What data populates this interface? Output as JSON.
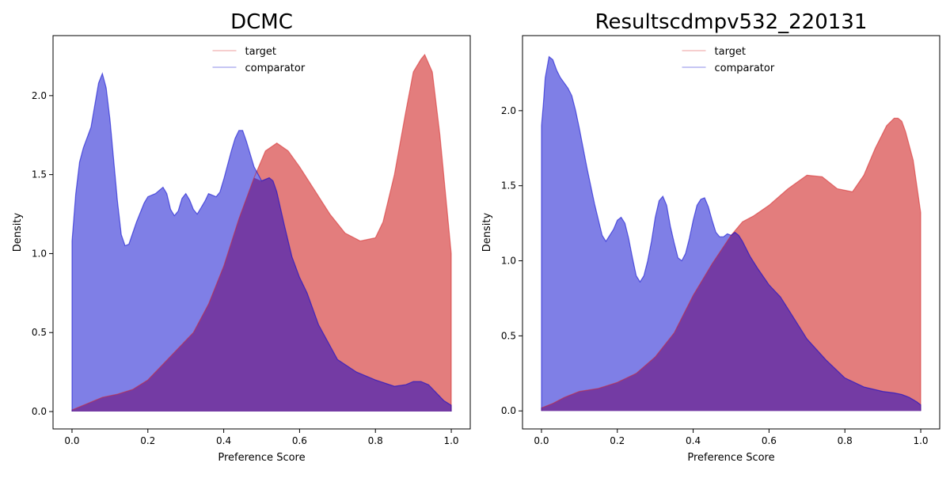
{
  "chart_data": [
    {
      "type": "area",
      "title": "DCMC",
      "xlabel": "Preference Score",
      "ylabel": "Density",
      "xlim": [
        -0.05,
        1.05
      ],
      "ylim": [
        -0.11,
        2.38
      ],
      "xticks": [
        0.0,
        0.2,
        0.4,
        0.6,
        0.8,
        1.0
      ],
      "xtick_labels": [
        "0.0",
        "0.2",
        "0.4",
        "0.6",
        "0.8",
        "1.0"
      ],
      "yticks": [
        0.0,
        0.5,
        1.0,
        1.5,
        2.0
      ],
      "ytick_labels": [
        "0.0",
        "0.5",
        "1.0",
        "1.5",
        "2.0"
      ],
      "legend_position": "top-center",
      "series": [
        {
          "name": "target",
          "color": "#d62728",
          "x": [
            0.0,
            0.02,
            0.05,
            0.08,
            0.12,
            0.16,
            0.2,
            0.24,
            0.28,
            0.32,
            0.36,
            0.4,
            0.44,
            0.48,
            0.51,
            0.54,
            0.57,
            0.6,
            0.64,
            0.68,
            0.72,
            0.76,
            0.8,
            0.82,
            0.85,
            0.88,
            0.9,
            0.92,
            0.93,
            0.95,
            0.97,
            1.0
          ],
          "values": [
            0.01,
            0.03,
            0.06,
            0.09,
            0.11,
            0.14,
            0.2,
            0.3,
            0.4,
            0.5,
            0.68,
            0.92,
            1.22,
            1.48,
            1.65,
            1.7,
            1.65,
            1.55,
            1.4,
            1.25,
            1.13,
            1.08,
            1.1,
            1.2,
            1.5,
            1.9,
            2.15,
            2.23,
            2.26,
            2.15,
            1.75,
            1.0
          ]
        },
        {
          "name": "comparator",
          "color": "#0000cc",
          "x": [
            0.0,
            0.01,
            0.02,
            0.03,
            0.05,
            0.07,
            0.08,
            0.09,
            0.1,
            0.12,
            0.13,
            0.14,
            0.15,
            0.17,
            0.19,
            0.2,
            0.22,
            0.24,
            0.25,
            0.26,
            0.27,
            0.28,
            0.29,
            0.3,
            0.31,
            0.32,
            0.33,
            0.35,
            0.36,
            0.38,
            0.39,
            0.4,
            0.42,
            0.43,
            0.44,
            0.45,
            0.46,
            0.48,
            0.5,
            0.52,
            0.53,
            0.54,
            0.56,
            0.58,
            0.6,
            0.62,
            0.65,
            0.7,
            0.75,
            0.8,
            0.85,
            0.88,
            0.9,
            0.92,
            0.94,
            0.96,
            0.98,
            1.0
          ],
          "values": [
            1.08,
            1.38,
            1.58,
            1.67,
            1.8,
            2.08,
            2.14,
            2.05,
            1.85,
            1.33,
            1.12,
            1.05,
            1.06,
            1.2,
            1.32,
            1.36,
            1.38,
            1.42,
            1.38,
            1.28,
            1.24,
            1.27,
            1.35,
            1.38,
            1.34,
            1.28,
            1.25,
            1.33,
            1.38,
            1.36,
            1.39,
            1.47,
            1.65,
            1.73,
            1.78,
            1.78,
            1.71,
            1.55,
            1.46,
            1.48,
            1.46,
            1.39,
            1.18,
            0.98,
            0.85,
            0.75,
            0.55,
            0.33,
            0.25,
            0.2,
            0.16,
            0.17,
            0.19,
            0.19,
            0.17,
            0.12,
            0.07,
            0.04
          ]
        }
      ]
    },
    {
      "type": "area",
      "title": "Resultscdmpv532_220131",
      "xlabel": "Preference Score",
      "ylabel": "Density",
      "xlim": [
        -0.05,
        1.05
      ],
      "ylim": [
        -0.12,
        2.5
      ],
      "xticks": [
        0.0,
        0.2,
        0.4,
        0.6,
        0.8,
        1.0
      ],
      "xtick_labels": [
        "0.0",
        "0.2",
        "0.4",
        "0.6",
        "0.8",
        "1.0"
      ],
      "yticks": [
        0.0,
        0.5,
        1.0,
        1.5,
        2.0
      ],
      "ytick_labels": [
        "0.0",
        "0.5",
        "1.0",
        "1.5",
        "2.0"
      ],
      "legend_position": "top-center",
      "series": [
        {
          "name": "target",
          "color": "#d62728",
          "x": [
            0.0,
            0.03,
            0.06,
            0.1,
            0.15,
            0.2,
            0.25,
            0.3,
            0.35,
            0.4,
            0.45,
            0.5,
            0.53,
            0.56,
            0.6,
            0.65,
            0.7,
            0.74,
            0.78,
            0.82,
            0.85,
            0.88,
            0.91,
            0.93,
            0.94,
            0.95,
            0.96,
            0.98,
            1.0
          ],
          "values": [
            0.02,
            0.05,
            0.09,
            0.13,
            0.15,
            0.19,
            0.25,
            0.36,
            0.52,
            0.77,
            0.98,
            1.17,
            1.26,
            1.3,
            1.37,
            1.48,
            1.57,
            1.56,
            1.48,
            1.46,
            1.57,
            1.75,
            1.9,
            1.95,
            1.95,
            1.93,
            1.86,
            1.67,
            1.32
          ]
        },
        {
          "name": "comparator",
          "color": "#0000cc",
          "x": [
            0.0,
            0.005,
            0.01,
            0.02,
            0.03,
            0.04,
            0.05,
            0.07,
            0.08,
            0.09,
            0.1,
            0.12,
            0.14,
            0.16,
            0.17,
            0.18,
            0.19,
            0.2,
            0.21,
            0.22,
            0.23,
            0.24,
            0.25,
            0.26,
            0.27,
            0.28,
            0.29,
            0.3,
            0.31,
            0.32,
            0.33,
            0.34,
            0.35,
            0.36,
            0.37,
            0.38,
            0.39,
            0.4,
            0.41,
            0.42,
            0.43,
            0.44,
            0.45,
            0.46,
            0.47,
            0.48,
            0.49,
            0.5,
            0.51,
            0.52,
            0.53,
            0.55,
            0.57,
            0.6,
            0.63,
            0.65,
            0.7,
            0.75,
            0.8,
            0.85,
            0.9,
            0.93,
            0.95,
            0.97,
            0.99,
            1.0
          ],
          "values": [
            1.9,
            2.05,
            2.22,
            2.36,
            2.34,
            2.27,
            2.22,
            2.15,
            2.1,
            2.0,
            1.88,
            1.62,
            1.38,
            1.17,
            1.13,
            1.17,
            1.21,
            1.27,
            1.29,
            1.25,
            1.15,
            1.02,
            0.9,
            0.86,
            0.9,
            1.0,
            1.13,
            1.29,
            1.4,
            1.43,
            1.37,
            1.23,
            1.12,
            1.02,
            1.0,
            1.05,
            1.15,
            1.27,
            1.37,
            1.41,
            1.42,
            1.36,
            1.27,
            1.19,
            1.16,
            1.16,
            1.18,
            1.17,
            1.19,
            1.17,
            1.13,
            1.03,
            0.95,
            0.84,
            0.76,
            0.68,
            0.48,
            0.34,
            0.22,
            0.16,
            0.13,
            0.12,
            0.11,
            0.09,
            0.06,
            0.04
          ]
        }
      ]
    }
  ]
}
